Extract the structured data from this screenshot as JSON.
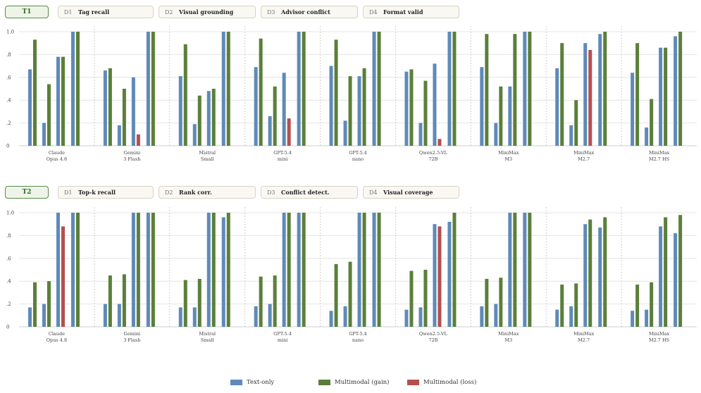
{
  "colors": {
    "text_only": "#5f8ab9",
    "gain": "#5b7f3a",
    "loss": "#b5504f",
    "grid": "#e4e4e4"
  },
  "panel_tabs": [
    {
      "id": "T1",
      "metrics": [
        {
          "code": "D1",
          "label": "Tag recall"
        },
        {
          "code": "D2",
          "label": "Visual grounding"
        },
        {
          "code": "D3",
          "label": "Advisor conflict"
        },
        {
          "code": "D4",
          "label": "Format valid"
        }
      ]
    },
    {
      "id": "T2",
      "metrics": [
        {
          "code": "D1",
          "label": "Top-k recall"
        },
        {
          "code": "D2",
          "label": "Rank corr."
        },
        {
          "code": "D3",
          "label": "Conflict detect."
        },
        {
          "code": "D4",
          "label": "Visual coverage"
        }
      ]
    }
  ],
  "legend": [
    {
      "label": "Text-only",
      "color": "#5f8ab9"
    },
    {
      "label": "Multimodal (gain)",
      "color": "#5b7f3a"
    },
    {
      "label": "Multimodal (loss)",
      "color": "#b5504f"
    }
  ],
  "chart_data": [
    {
      "type": "bar",
      "panel": "T1",
      "ylim": [
        0,
        1.0
      ],
      "yticks": [
        "0",
        ".2",
        ".4",
        ".6",
        ".8",
        "1.0"
      ],
      "categories": [
        [
          "Claude",
          "Opus 4.8"
        ],
        [
          "Gemini",
          "3 Flash"
        ],
        [
          "Mistral",
          "Small"
        ],
        [
          "GPT-5.4",
          "mini"
        ],
        [
          "GPT-5.4",
          "nano"
        ],
        [
          "Qwen2.5-VL",
          "72B"
        ],
        [
          "MiniMax",
          "M3"
        ],
        [
          "MiniMax",
          "M2.7"
        ],
        [
          "MiniMax",
          "M2.7 HS"
        ]
      ],
      "metrics": [
        "D1",
        "D2",
        "D3",
        "D4"
      ],
      "series": [
        {
          "name": "Text-only",
          "values": [
            [
              0.67,
              0.2,
              0.78,
              1.0
            ],
            [
              0.66,
              0.18,
              0.6,
              1.0
            ],
            [
              0.61,
              0.19,
              0.48,
              1.0
            ],
            [
              0.69,
              0.26,
              0.64,
              1.0
            ],
            [
              0.7,
              0.22,
              0.61,
              1.0
            ],
            [
              0.65,
              0.2,
              0.72,
              1.0
            ],
            [
              0.69,
              0.2,
              0.52,
              1.0
            ],
            [
              0.68,
              0.18,
              0.9,
              0.98
            ],
            [
              0.64,
              0.16,
              0.86,
              0.96
            ]
          ]
        },
        {
          "name": "Multimodal",
          "values": [
            [
              0.93,
              0.54,
              0.78,
              1.0
            ],
            [
              0.68,
              0.5,
              0.1,
              1.0
            ],
            [
              0.89,
              0.44,
              0.5,
              1.0
            ],
            [
              0.94,
              0.52,
              0.24,
              1.0
            ],
            [
              0.93,
              0.61,
              0.68,
              1.0
            ],
            [
              0.67,
              0.57,
              0.06,
              1.0
            ],
            [
              0.98,
              0.52,
              0.98,
              1.0
            ],
            [
              0.9,
              0.4,
              0.84,
              1.0
            ],
            [
              0.9,
              0.41,
              0.86,
              1.0
            ]
          ],
          "loss_flags": [
            [
              0,
              0,
              0,
              0
            ],
            [
              0,
              0,
              1,
              0
            ],
            [
              0,
              0,
              0,
              0
            ],
            [
              0,
              0,
              1,
              0
            ],
            [
              0,
              0,
              0,
              0
            ],
            [
              0,
              0,
              1,
              0
            ],
            [
              0,
              0,
              0,
              0
            ],
            [
              0,
              0,
              1,
              0
            ],
            [
              0,
              0,
              0,
              0
            ]
          ]
        }
      ]
    },
    {
      "type": "bar",
      "panel": "T2",
      "ylim": [
        0,
        1.0
      ],
      "yticks": [
        "0",
        ".2",
        ".4",
        ".6",
        ".8",
        "1.0"
      ],
      "categories": [
        [
          "Claude",
          "Opus 4.8"
        ],
        [
          "Gemini",
          "3 Flash"
        ],
        [
          "Mistral",
          "Small"
        ],
        [
          "GPT-5.4",
          "mini"
        ],
        [
          "GPT-5.4",
          "nano"
        ],
        [
          "Qwen2.5-VL",
          "72B"
        ],
        [
          "MiniMax",
          "M3"
        ],
        [
          "MiniMax",
          "M2.7"
        ],
        [
          "MiniMax",
          "M2.7 HS"
        ]
      ],
      "metrics": [
        "D1",
        "D2",
        "D3",
        "D4"
      ],
      "series": [
        {
          "name": "Text-only",
          "values": [
            [
              0.17,
              0.2,
              1.0,
              1.0
            ],
            [
              0.2,
              0.2,
              1.0,
              1.0
            ],
            [
              0.17,
              0.17,
              1.0,
              0.96
            ],
            [
              0.18,
              0.2,
              1.0,
              1.0
            ],
            [
              0.14,
              0.18,
              1.0,
              1.0
            ],
            [
              0.15,
              0.17,
              0.9,
              0.92
            ],
            [
              0.18,
              0.2,
              1.0,
              1.0
            ],
            [
              0.15,
              0.18,
              0.9,
              0.87
            ],
            [
              0.14,
              0.15,
              0.88,
              0.82
            ]
          ]
        },
        {
          "name": "Multimodal",
          "values": [
            [
              0.39,
              0.4,
              0.88,
              1.0
            ],
            [
              0.45,
              0.46,
              1.0,
              1.0
            ],
            [
              0.41,
              0.42,
              1.0,
              1.0
            ],
            [
              0.44,
              0.45,
              1.0,
              1.0
            ],
            [
              0.55,
              0.57,
              1.0,
              1.0
            ],
            [
              0.49,
              0.5,
              0.88,
              1.0
            ],
            [
              0.42,
              0.43,
              1.0,
              1.0
            ],
            [
              0.37,
              0.38,
              0.94,
              0.96
            ],
            [
              0.37,
              0.39,
              0.96,
              0.98
            ]
          ],
          "loss_flags": [
            [
              0,
              0,
              1,
              0
            ],
            [
              0,
              0,
              0,
              0
            ],
            [
              0,
              0,
              0,
              0
            ],
            [
              0,
              0,
              0,
              0
            ],
            [
              0,
              0,
              0,
              0
            ],
            [
              0,
              0,
              1,
              0
            ],
            [
              0,
              0,
              0,
              0
            ],
            [
              0,
              0,
              0,
              0
            ],
            [
              0,
              0,
              0,
              0
            ]
          ]
        }
      ]
    }
  ]
}
